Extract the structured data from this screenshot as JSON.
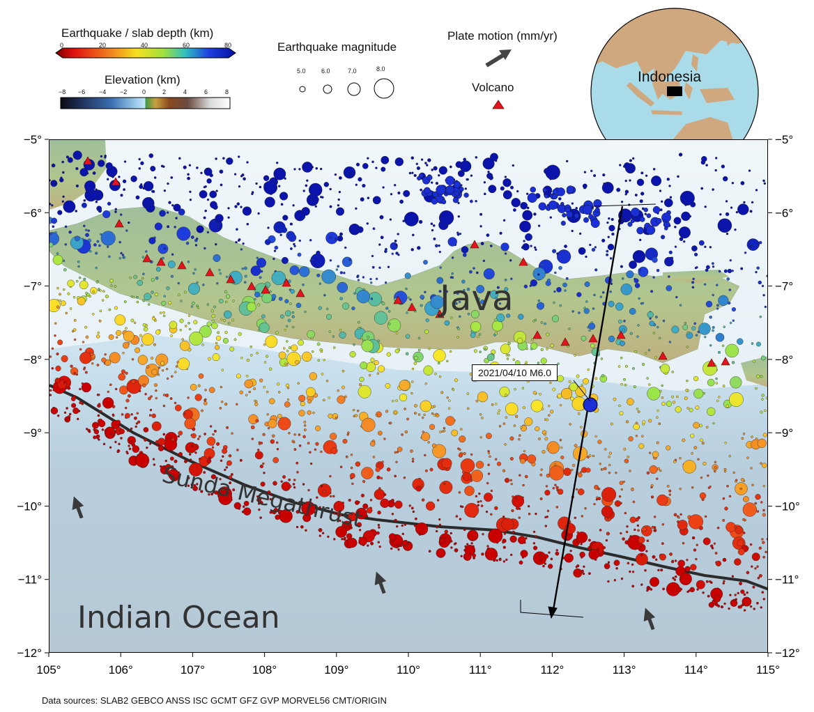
{
  "legend": {
    "depth_title": "Earthquake / slab depth (km)",
    "depth_ticks": [
      "0",
      "20",
      "40",
      "60",
      "80"
    ],
    "elevation_title": "Elevation (km)",
    "elevation_ticks": [
      "−8",
      "−6",
      "−4",
      "−2",
      "0",
      "2",
      "4",
      "6",
      "8"
    ],
    "magnitude_title": "Earthquake magnitude",
    "magnitudes": [
      "5.0",
      "6.0",
      "7.0",
      "8.0"
    ],
    "plate_motion_title": "Plate motion (mm/yr)",
    "volcano_title": "Volcano",
    "colors": {
      "volcano": "#e3141c",
      "plate_arrow": "#3a3a3a"
    }
  },
  "inset": {
    "label": "Indonesia"
  },
  "map": {
    "labels": {
      "island": "Java",
      "trench": "Sunda Megathrust",
      "ocean": "Indian Ocean"
    },
    "event_label": "2021/04/10 M6.0",
    "x_ticks": [
      "105°",
      "106°",
      "107°",
      "108°",
      "109°",
      "110°",
      "111°",
      "112°",
      "113°",
      "114°",
      "115°"
    ],
    "y_ticks": [
      "−5°",
      "−6°",
      "−7°",
      "−8°",
      "−9°",
      "−10°",
      "−11°",
      "−12°"
    ]
  },
  "footer": "Data sources: SLAB2 GEBCO ANSS ISC GCMT GFZ GVP MORVEL56 CMT/ORIGIN"
}
